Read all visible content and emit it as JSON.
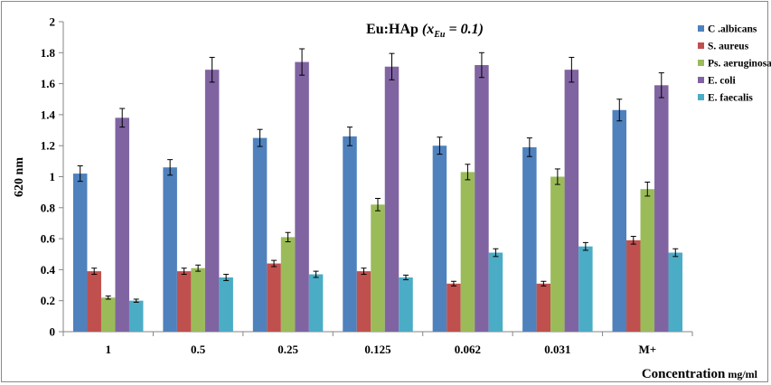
{
  "chart_data": {
    "type": "bar",
    "title_main": "Eu:HAp ",
    "title_var": "x",
    "title_sub": "Eu",
    "title_tail": " = 0.1)",
    "title_open": "(",
    "ylabel": "620 nm",
    "xlabel": "Concentration",
    "xlabel_unit": "mg/ml",
    "ylim": [
      0,
      2
    ],
    "yticks": [
      "0",
      "0.2",
      "0.4",
      "0.6",
      "0.8",
      "1",
      "1.2",
      "1.4",
      "1.6",
      "1.8",
      "2"
    ],
    "categories": [
      "1",
      "0.5",
      "0.25",
      "0.125",
      "0.062",
      "0.031",
      "M+"
    ],
    "legend_position": "top-right",
    "grid": false,
    "series": [
      {
        "name": "C .albicans",
        "color": "#4f81bd",
        "values": [
          1.02,
          1.06,
          1.25,
          1.26,
          1.2,
          1.19,
          1.43
        ],
        "errors": [
          0.05,
          0.05,
          0.055,
          0.06,
          0.055,
          0.06,
          0.07
        ]
      },
      {
        "name": "S. aureus",
        "color": "#c0504d",
        "values": [
          0.39,
          0.39,
          0.44,
          0.39,
          0.31,
          0.31,
          0.59
        ],
        "errors": [
          0.02,
          0.02,
          0.02,
          0.02,
          0.015,
          0.015,
          0.025
        ]
      },
      {
        "name": "Ps. aeruginosa",
        "color": "#9bbb59",
        "values": [
          0.22,
          0.41,
          0.61,
          0.82,
          1.03,
          1.0,
          0.92
        ],
        "errors": [
          0.01,
          0.02,
          0.03,
          0.04,
          0.05,
          0.05,
          0.045
        ]
      },
      {
        "name": "E. coli",
        "color": "#8064a2",
        "values": [
          1.38,
          1.69,
          1.74,
          1.71,
          1.72,
          1.69,
          1.59
        ],
        "errors": [
          0.06,
          0.08,
          0.085,
          0.085,
          0.08,
          0.08,
          0.08
        ]
      },
      {
        "name": "E. faecalis",
        "color": "#4bacc6",
        "values": [
          0.2,
          0.35,
          0.37,
          0.35,
          0.51,
          0.55,
          0.51
        ],
        "errors": [
          0.01,
          0.02,
          0.02,
          0.015,
          0.025,
          0.025,
          0.025
        ]
      }
    ]
  }
}
